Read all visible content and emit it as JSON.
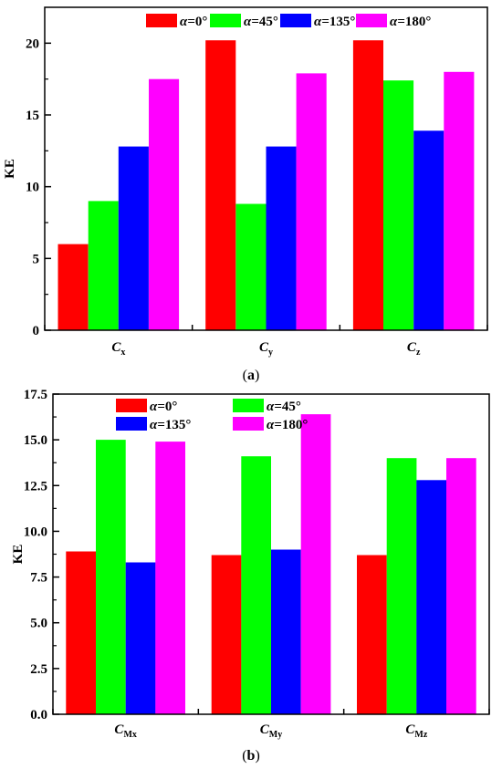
{
  "chart_data": [
    {
      "type": "bar",
      "panel_label": "(a)",
      "ylabel": "KE",
      "ylim": [
        0,
        22.5
      ],
      "yticks": [
        "0",
        "5",
        "10",
        "15",
        "20"
      ],
      "categories": [
        {
          "main": "C",
          "sub": "x"
        },
        {
          "main": "C",
          "sub": "y"
        },
        {
          "main": "C",
          "sub": "z"
        }
      ],
      "series": [
        {
          "name": "α=0°",
          "color": "#ff0000",
          "values": [
            6.0,
            20.2,
            20.2
          ]
        },
        {
          "name": "α=45°",
          "color": "#00ff00",
          "values": [
            9.0,
            8.8,
            17.4
          ]
        },
        {
          "name": "α=135°",
          "color": "#0000ff",
          "values": [
            12.8,
            12.8,
            13.9
          ]
        },
        {
          "name": "α=180°",
          "color": "#ff00ff",
          "values": [
            17.5,
            17.9,
            18.0
          ]
        }
      ],
      "legend_layout": "one row, top"
    },
    {
      "type": "bar",
      "panel_label": "(b)",
      "ylabel": "KE",
      "ylim": [
        0,
        17.5
      ],
      "yticks": [
        "0.0",
        "2.5",
        "5.0",
        "7.5",
        "10.0",
        "12.5",
        "15.0",
        "17.5"
      ],
      "categories": [
        {
          "main": "C",
          "sub": "Mx"
        },
        {
          "main": "C",
          "sub": "My"
        },
        {
          "main": "C",
          "sub": "Mz"
        }
      ],
      "series": [
        {
          "name": "α=0°",
          "color": "#ff0000",
          "values": [
            8.9,
            8.7,
            8.7
          ]
        },
        {
          "name": "α=45°",
          "color": "#00ff00",
          "values": [
            15.0,
            14.1,
            14.0
          ]
        },
        {
          "name": "α=135°",
          "color": "#0000ff",
          "values": [
            8.3,
            9.0,
            12.8
          ]
        },
        {
          "name": "α=180°",
          "color": "#ff00ff",
          "values": [
            14.9,
            16.4,
            14.0
          ]
        }
      ],
      "legend_layout": "two rows, top-left"
    }
  ]
}
